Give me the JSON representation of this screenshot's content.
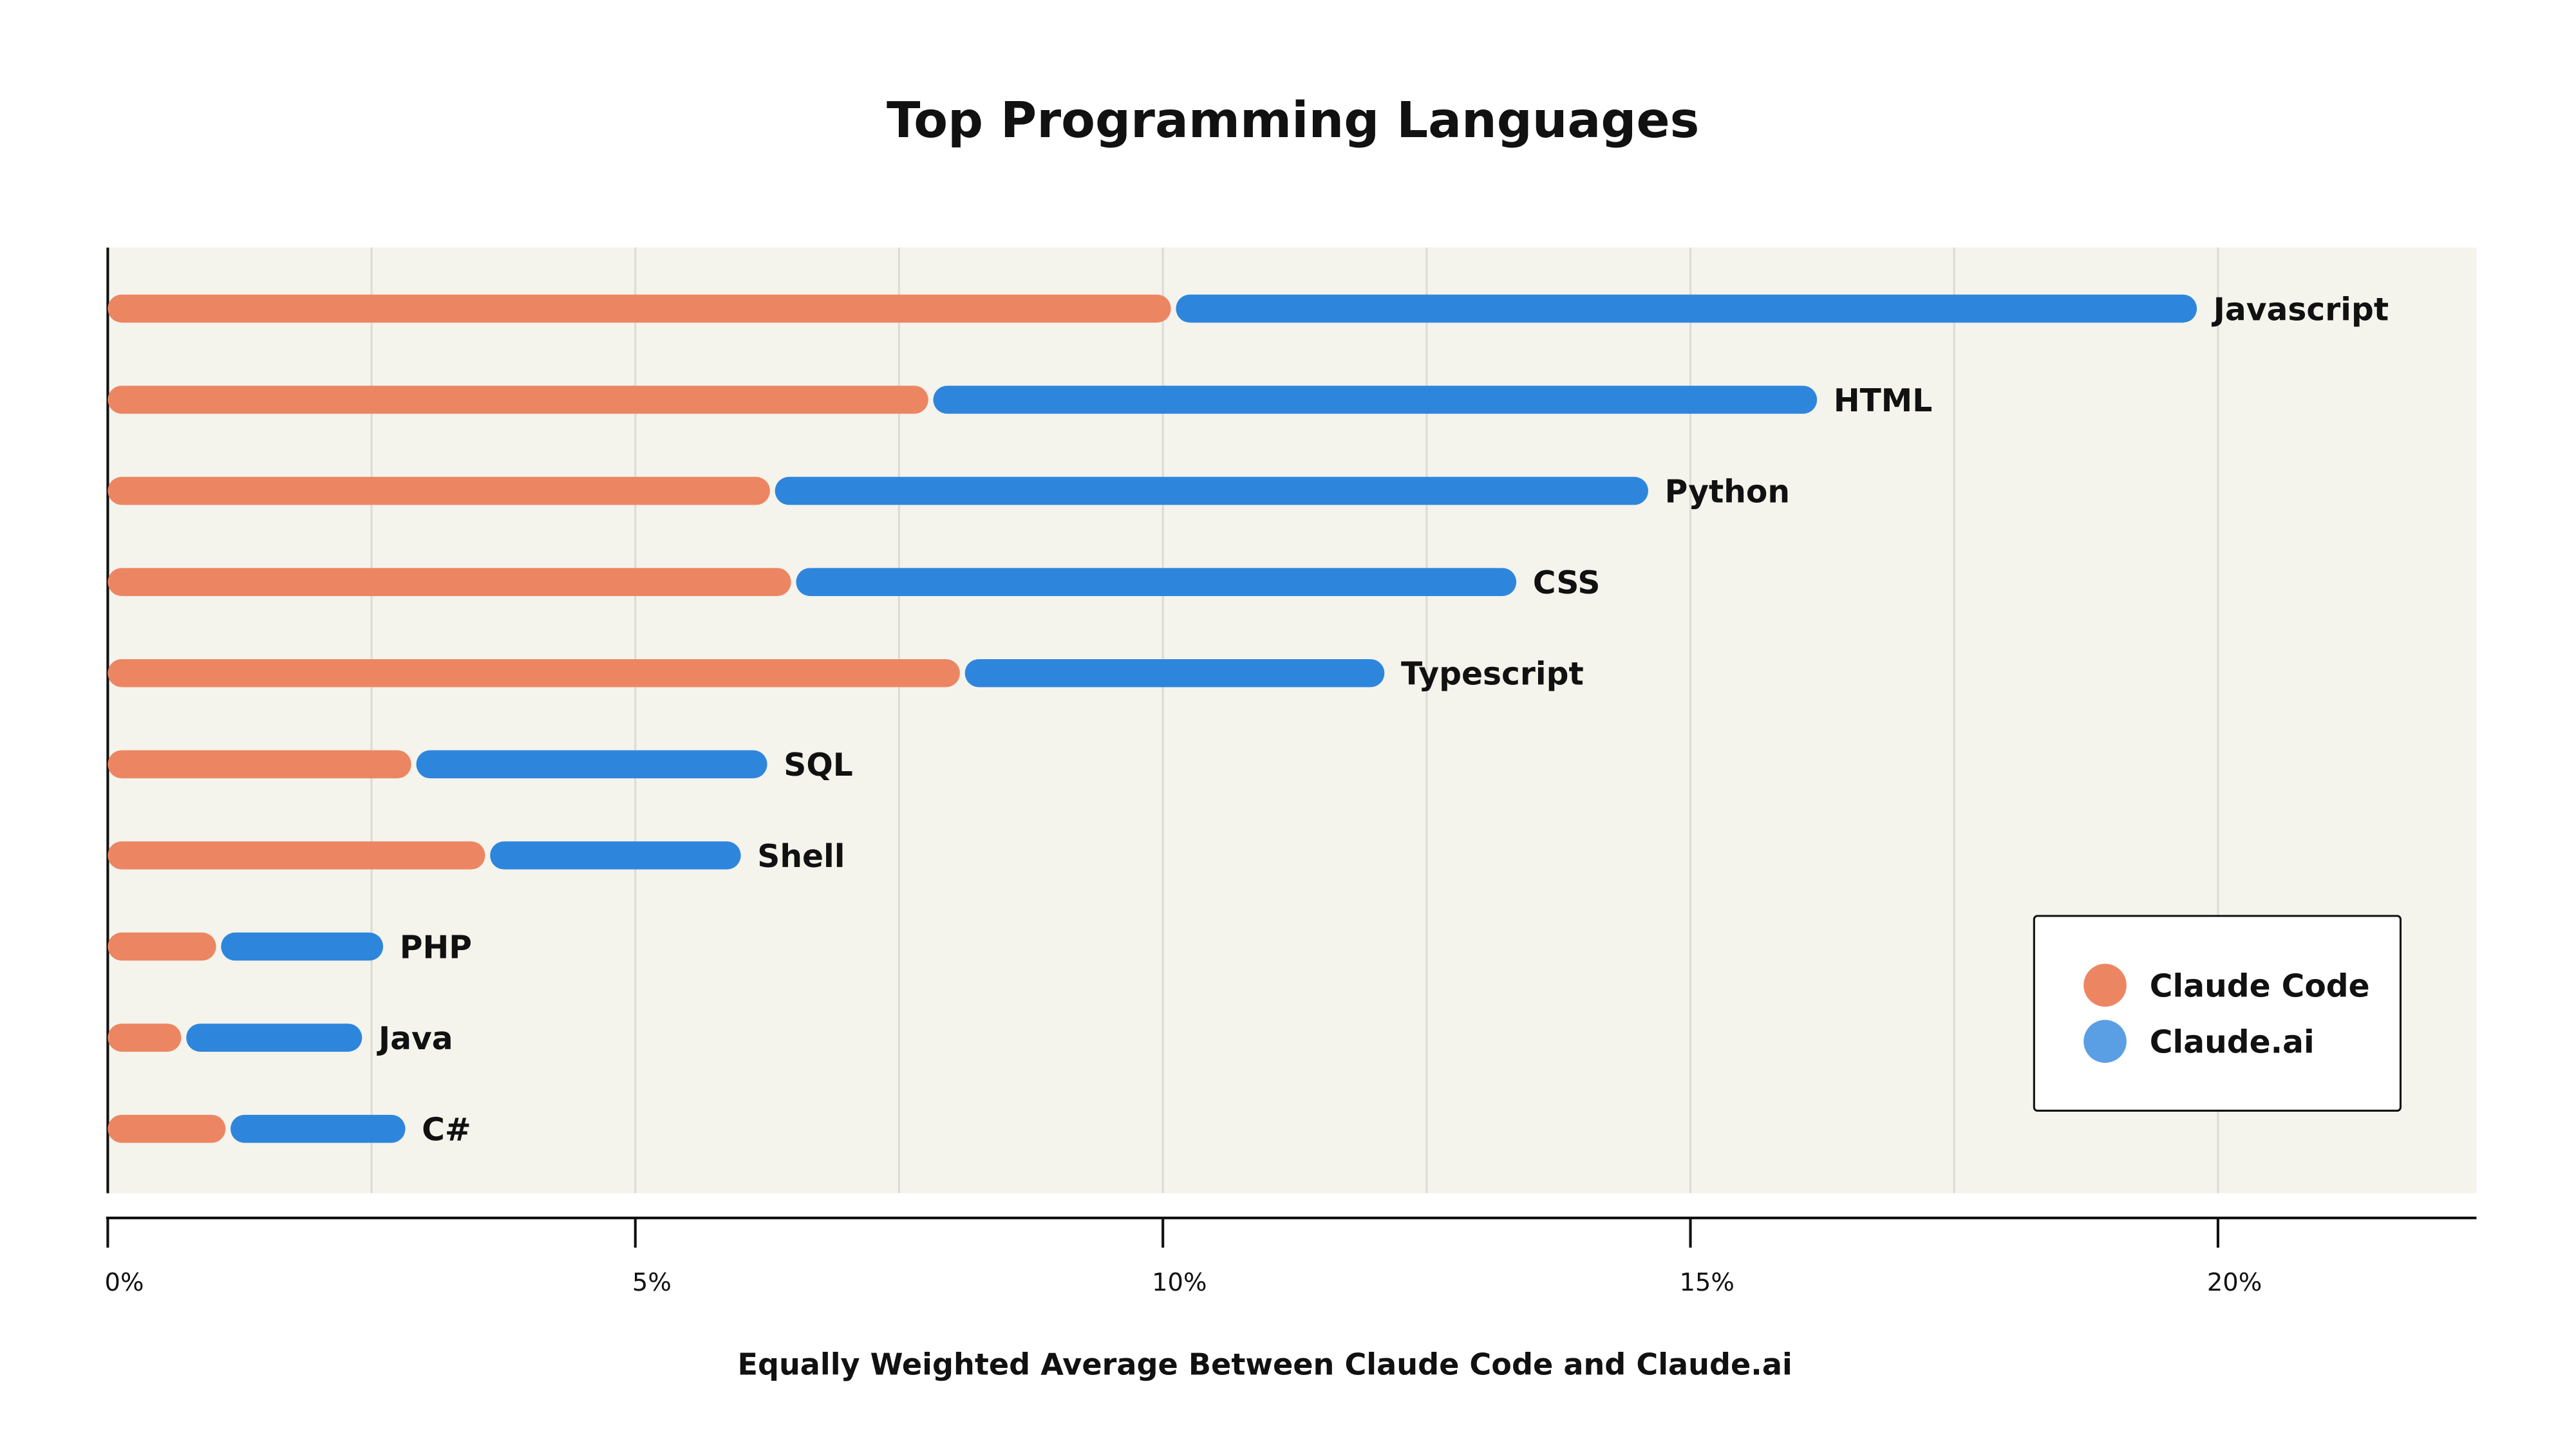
{
  "chart_data": {
    "type": "bar",
    "orientation": "horizontal",
    "stacked": true,
    "title": "Top Programming Languages",
    "xlabel": "Equally Weighted Average Between Claude Code and Claude.ai",
    "ylabel": "",
    "xlim": [
      0,
      22.45
    ],
    "x_ticks": [
      0,
      5,
      10,
      15,
      20
    ],
    "x_tick_labels": [
      "0%",
      "5%",
      "10%",
      "15%",
      "20%"
    ],
    "gridlines_every": 2.5,
    "grid": true,
    "legend_position": "bottom-right",
    "categories": [
      "Javascript",
      "HTML",
      "Python",
      "CSS",
      "Typescript",
      "SQL",
      "Shell",
      "PHP",
      "Java",
      "C#"
    ],
    "series": [
      {
        "name": "Claude Code",
        "color": "#EC8662",
        "values": [
          10.1,
          7.8,
          6.3,
          6.5,
          8.1,
          2.9,
          3.6,
          1.05,
          0.72,
          1.14
        ]
      },
      {
        "name": "Claude.ai",
        "color": "#2E86DC",
        "values": [
          9.7,
          8.4,
          8.3,
          6.85,
          4.0,
          3.35,
          2.4,
          1.56,
          1.69,
          1.68
        ]
      }
    ],
    "legend_colors": [
      "#EC8662",
      "#5A9FE3"
    ],
    "plot_background": "#F4F3EC",
    "grid_color": "#DDDCD4"
  }
}
